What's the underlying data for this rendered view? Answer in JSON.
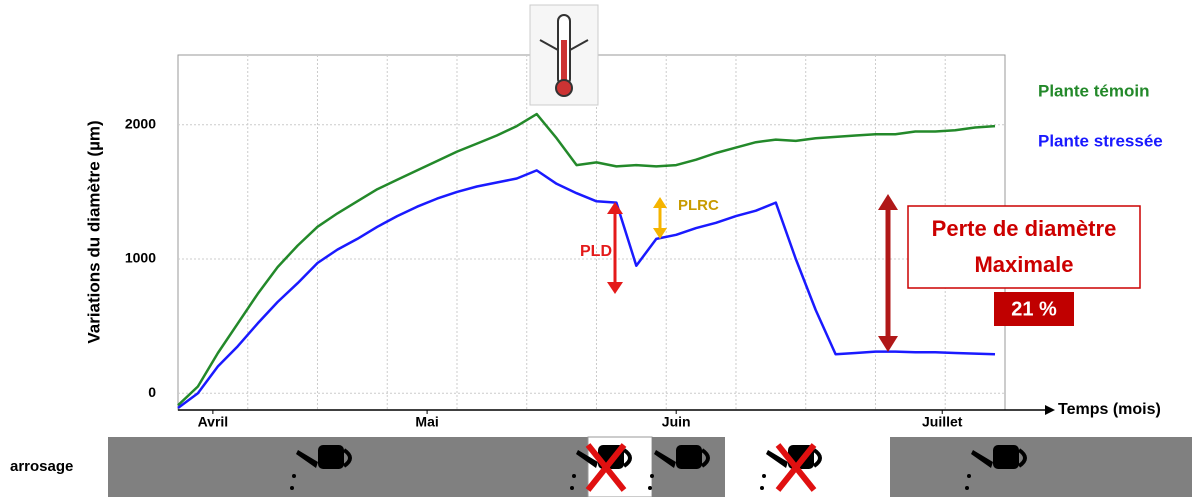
{
  "chart_data": {
    "type": "line",
    "y_label": "Variations du diamètre (µm)",
    "x_label": "Temps (mois)",
    "xlim": [
      0,
      83
    ],
    "ylim": [
      -125,
      2520
    ],
    "xticks": [
      {
        "value": 3.5,
        "label": "Avril"
      },
      {
        "value": 25,
        "label": "Mai"
      },
      {
        "value": 50,
        "label": "Juin"
      },
      {
        "value": 76.7,
        "label": "Juillet"
      }
    ],
    "xgrid": [
      7,
      14,
      21,
      28,
      35,
      42,
      49,
      56,
      63,
      70,
      77
    ],
    "yticks": [
      0,
      1000,
      2000
    ],
    "grid": true,
    "x": [
      0,
      2,
      4,
      6,
      8,
      10,
      12,
      14,
      16,
      18,
      20,
      22,
      24,
      26,
      28,
      30,
      32,
      34,
      36,
      38,
      40,
      42,
      44,
      46,
      48,
      50,
      52,
      54,
      56,
      58,
      60,
      62,
      64,
      66,
      68,
      70,
      72,
      74,
      76,
      78,
      80,
      82
    ],
    "series": [
      {
        "name": "Plante témoin",
        "color": "#23892a",
        "values": [
          -90,
          50,
          300,
          520,
          740,
          940,
          1100,
          1240,
          1340,
          1430,
          1520,
          1590,
          1660,
          1730,
          1800,
          1860,
          1920,
          1990,
          2080,
          1900,
          1700,
          1720,
          1690,
          1700,
          1690,
          1700,
          1740,
          1790,
          1830,
          1870,
          1890,
          1880,
          1900,
          1910,
          1920,
          1930,
          1930,
          1950,
          1950,
          1960,
          1980,
          1990
        ]
      },
      {
        "name": "Plante stressée",
        "color": "#1a1aff",
        "values": [
          -110,
          0,
          200,
          350,
          520,
          680,
          820,
          970,
          1070,
          1150,
          1240,
          1320,
          1390,
          1450,
          1500,
          1540,
          1570,
          1600,
          1660,
          1560,
          1490,
          1430,
          1420,
          950,
          1150,
          1180,
          1230,
          1270,
          1320,
          1360,
          1420,
          1000,
          620,
          290,
          300,
          310,
          310,
          305,
          305,
          300,
          295,
          290
        ]
      }
    ],
    "annotations": {
      "pld": "PLD",
      "plrc": "PLRC",
      "loss_title": [
        "Perte de diamètre",
        "Maximale"
      ],
      "loss_value": "21 %"
    },
    "watering_label": "arrosage"
  }
}
